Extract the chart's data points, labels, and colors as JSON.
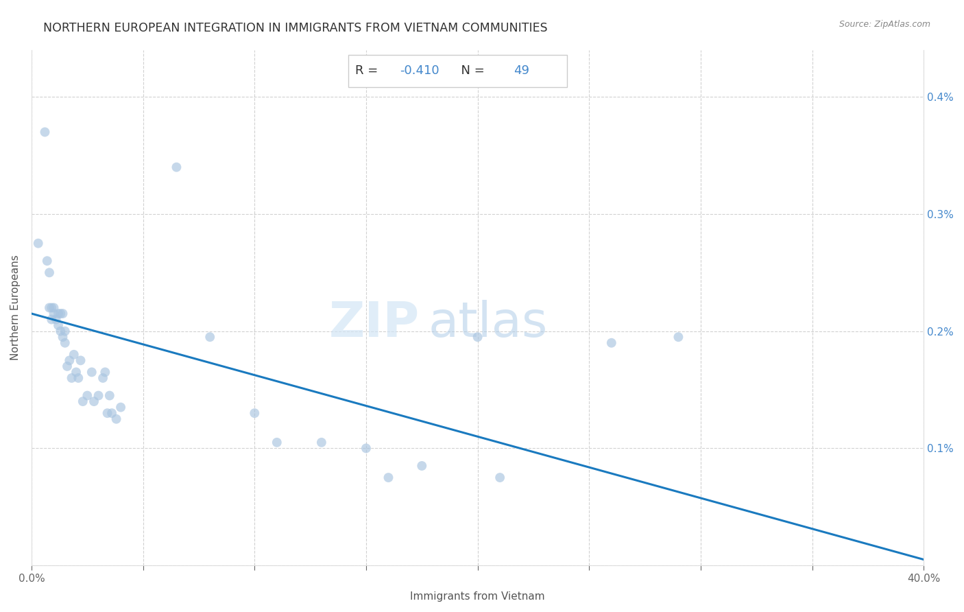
{
  "title": "NORTHERN EUROPEAN INTEGRATION IN IMMIGRANTS FROM VIETNAM COMMUNITIES",
  "source": "Source: ZipAtlas.com",
  "xlabel": "Immigrants from Vietnam",
  "ylabel": "Northern Europeans",
  "R": -0.41,
  "N": 49,
  "xlim": [
    0.0,
    0.4
  ],
  "ylim": [
    0.0,
    0.0044
  ],
  "xtick_positions": [
    0.0,
    0.05,
    0.1,
    0.15,
    0.2,
    0.25,
    0.3,
    0.35,
    0.4
  ],
  "xtick_labels": [
    "0.0%",
    "",
    "",
    "",
    "",
    "",
    "",
    "",
    "40.0%"
  ],
  "ytick_positions": [
    0.0,
    0.001,
    0.002,
    0.003,
    0.004
  ],
  "ytick_labels_right": [
    "",
    "0.1%",
    "0.2%",
    "0.3%",
    "0.4%"
  ],
  "scatter_color": "#a8c4e0",
  "line_color": "#1a7abf",
  "background_color": "#ffffff",
  "grid_color": "#cccccc",
  "watermark_zip": "ZIP",
  "watermark_atlas": "atlas",
  "scatter_x": [
    0.003,
    0.006,
    0.007,
    0.008,
    0.008,
    0.009,
    0.009,
    0.01,
    0.01,
    0.011,
    0.012,
    0.012,
    0.013,
    0.013,
    0.014,
    0.014,
    0.015,
    0.015,
    0.016,
    0.017,
    0.018,
    0.019,
    0.02,
    0.021,
    0.022,
    0.023,
    0.025,
    0.027,
    0.028,
    0.03,
    0.032,
    0.033,
    0.034,
    0.035,
    0.036,
    0.038,
    0.04,
    0.065,
    0.08,
    0.1,
    0.11,
    0.13,
    0.16,
    0.2,
    0.21,
    0.26,
    0.29,
    0.15,
    0.175
  ],
  "scatter_y": [
    0.00275,
    0.0037,
    0.0026,
    0.0022,
    0.0025,
    0.0022,
    0.0021,
    0.00215,
    0.0022,
    0.0021,
    0.00215,
    0.00205,
    0.00215,
    0.002,
    0.00215,
    0.00195,
    0.002,
    0.0019,
    0.0017,
    0.00175,
    0.0016,
    0.0018,
    0.00165,
    0.0016,
    0.00175,
    0.0014,
    0.00145,
    0.00165,
    0.0014,
    0.00145,
    0.0016,
    0.00165,
    0.0013,
    0.00145,
    0.0013,
    0.00125,
    0.00135,
    0.0034,
    0.00195,
    0.0013,
    0.00105,
    0.00105,
    0.00075,
    0.00195,
    0.00075,
    0.0019,
    0.00195,
    0.001,
    0.00085
  ],
  "line_x0": 0.0,
  "line_x1": 0.4,
  "line_y0": 0.00215,
  "line_y1": 5e-05,
  "dot_size": 100,
  "dot_alpha": 0.65,
  "title_fontsize": 12.5,
  "label_fontsize": 11,
  "tick_fontsize": 11,
  "stats_fontsize": 13,
  "figwidth": 14.06,
  "figheight": 8.92,
  "dpi": 100
}
